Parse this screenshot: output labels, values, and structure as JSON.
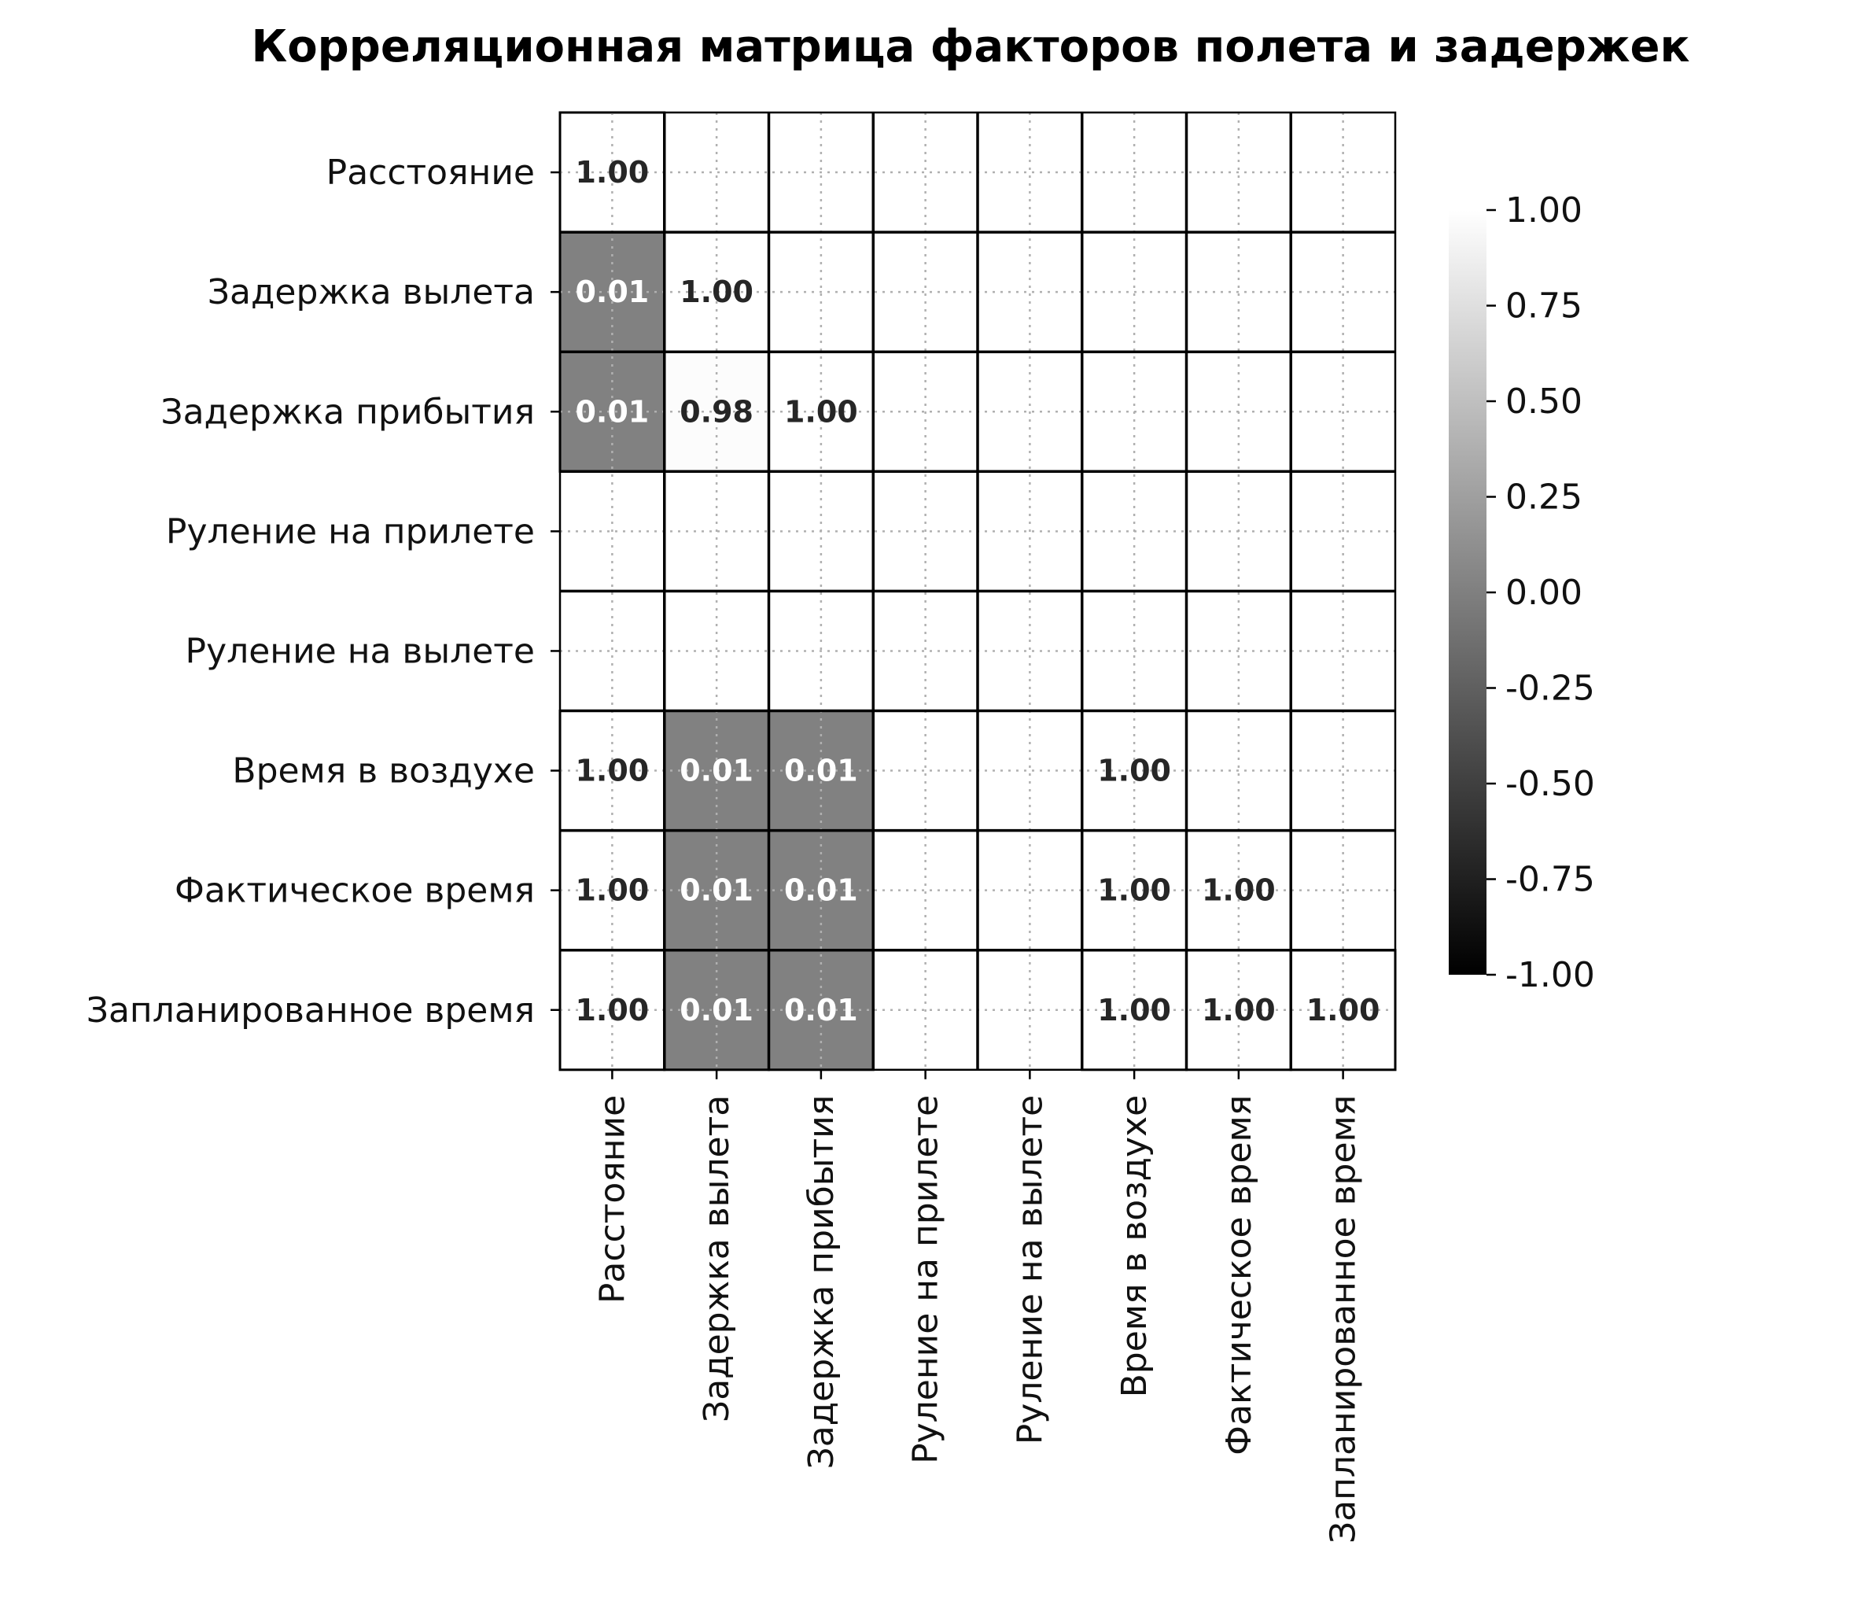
{
  "chart_data": {
    "type": "heatmap",
    "title": "Корреляционная матрица факторов полета и задержек",
    "rows": [
      "Расстояние",
      "Задержка вылета",
      "Задержка прибытия",
      "Руление на прилете",
      "Руление на вылете",
      "Время в воздухе",
      "Фактическое время",
      "Запланированное время"
    ],
    "columns": [
      "Расстояние",
      "Задержка вылета",
      "Задержка прибытия",
      "Руление на прилете",
      "Руление на вылете",
      "Время в воздухе",
      "Фактическое время",
      "Запланированное время"
    ],
    "values": [
      [
        1.0,
        null,
        null,
        null,
        null,
        null,
        null,
        null
      ],
      [
        0.01,
        1.0,
        null,
        null,
        null,
        null,
        null,
        null
      ],
      [
        0.01,
        0.98,
        1.0,
        null,
        null,
        null,
        null,
        null
      ],
      [
        null,
        null,
        null,
        null,
        null,
        null,
        null,
        null
      ],
      [
        null,
        null,
        null,
        null,
        null,
        null,
        null,
        null
      ],
      [
        1.0,
        0.01,
        0.01,
        null,
        null,
        1.0,
        null,
        null
      ],
      [
        1.0,
        0.01,
        0.01,
        null,
        null,
        1.0,
        1.0,
        null
      ],
      [
        1.0,
        0.01,
        0.01,
        null,
        null,
        1.0,
        1.0,
        1.0
      ]
    ],
    "labels": [
      [
        "1.00",
        "",
        "",
        "",
        "",
        "",
        "",
        ""
      ],
      [
        "0.01",
        "1.00",
        "",
        "",
        "",
        "",
        "",
        ""
      ],
      [
        "0.01",
        "0.98",
        "1.00",
        "",
        "",
        "",
        "",
        ""
      ],
      [
        "",
        "",
        "",
        "",
        "",
        "",
        "",
        ""
      ],
      [
        "",
        "",
        "",
        "",
        "",
        "",
        "",
        ""
      ],
      [
        "1.00",
        "0.01",
        "0.01",
        "",
        "",
        "1.00",
        "",
        ""
      ],
      [
        "1.00",
        "0.01",
        "0.01",
        "",
        "",
        "1.00",
        "1.00",
        ""
      ],
      [
        "1.00",
        "0.01",
        "0.01",
        "",
        "",
        "1.00",
        "1.00",
        "1.00"
      ]
    ],
    "colorbar": {
      "min": -1.0,
      "max": 1.0,
      "ticks": [
        "1.00",
        "0.75",
        "0.50",
        "0.25",
        "0.00",
        "-0.25",
        "-0.50",
        "-0.75",
        "-1.00"
      ],
      "colormap": "gray"
    },
    "grid": true,
    "colors": {
      "low": "#000000",
      "high": "#ffffff",
      "cell_border": "#000000",
      "grid": "#b0b0b0"
    }
  }
}
